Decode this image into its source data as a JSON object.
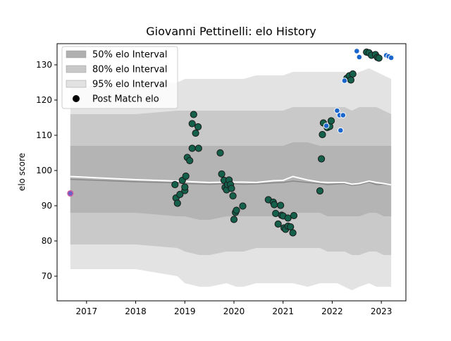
{
  "chart_data": {
    "type": "scatter",
    "title": "Giovanni Pettinelli: elo History",
    "xlabel": "",
    "ylabel": "elo score",
    "xlim": [
      2016.4,
      2023.5
    ],
    "ylim": [
      63,
      136
    ],
    "x_ticks": [
      2017,
      2018,
      2019,
      2020,
      2021,
      2022,
      2023
    ],
    "y_ticks": [
      70,
      80,
      90,
      100,
      110,
      120,
      130
    ],
    "grid": false,
    "legend_position": "upper-left",
    "legend": [
      {
        "label": "50% elo Interval",
        "kind": "band",
        "color": "#b0b0b0"
      },
      {
        "label": "80% elo Interval",
        "kind": "band",
        "color": "#c8c8c8"
      },
      {
        "label": "95% elo Interval",
        "kind": "band",
        "color": "#e2e2e2"
      },
      {
        "label": "Post Match elo",
        "kind": "marker",
        "color": "#000000"
      }
    ],
    "colors": {
      "band_50": "#b4b4b4",
      "band_80": "#c9c9c9",
      "band_95": "#e3e3e3",
      "mean_line": "#888888",
      "median_line": "#ffffff",
      "point_green": "#14604a",
      "point_blue": "#1a66cc",
      "point_initial": "#6a5fc7"
    },
    "bands": {
      "x": [
        2016.67,
        2018.0,
        2018.85,
        2019.0,
        2019.3,
        2019.5,
        2019.85,
        2020.05,
        2020.2,
        2020.45,
        2020.8,
        2021.0,
        2021.2,
        2021.5,
        2021.75,
        2021.9,
        2022.1,
        2022.25,
        2022.4,
        2022.55,
        2022.75,
        2022.9,
        2023.05,
        2023.2
      ],
      "band95_low": [
        72,
        72,
        70,
        68,
        67,
        67,
        68,
        67,
        67,
        68,
        68,
        68,
        68,
        67,
        68,
        68,
        68,
        67,
        66,
        67,
        68,
        67,
        67,
        67
      ],
      "band95_high": [
        124,
        124,
        125,
        126,
        126,
        126,
        126,
        126,
        126,
        127,
        127,
        127,
        128,
        128,
        128,
        128,
        128,
        128,
        127,
        128,
        129,
        128,
        127,
        126
      ],
      "band80_low": [
        79,
        79,
        78,
        77,
        76,
        76,
        77,
        77,
        77,
        78,
        78,
        78,
        78,
        78,
        78,
        77,
        77,
        77,
        76,
        76,
        77,
        77,
        76,
        76
      ],
      "band80_high": [
        116,
        116,
        117,
        117,
        117,
        117,
        117,
        117,
        117,
        117,
        117,
        117,
        118,
        118,
        118,
        118,
        118,
        118,
        117,
        118,
        118,
        118,
        117,
        116
      ],
      "band50_low": [
        88,
        88,
        87,
        87,
        86,
        86,
        87,
        87,
        87,
        87,
        87,
        87,
        88,
        88,
        88,
        87,
        87,
        87,
        87,
        87,
        88,
        88,
        87,
        87
      ],
      "band50_high": [
        107,
        107,
        107,
        107,
        107,
        107,
        107,
        107,
        107,
        107,
        107,
        107,
        108,
        108,
        107,
        107,
        107,
        107,
        107,
        107,
        107,
        107,
        107,
        107
      ],
      "mean": [
        97.5,
        96.8,
        96.5,
        96.3,
        96.2,
        96.1,
        96.3,
        96.2,
        96.1,
        96.2,
        96.5,
        96.6,
        97.0,
        96.6,
        96.3,
        96.0,
        96.2,
        96.3,
        95.8,
        96.0,
        96.7,
        96.0,
        96.1,
        95.8
      ],
      "median": [
        98.3,
        97.4,
        97.0,
        96.9,
        96.7,
        96.6,
        96.7,
        96.7,
        96.7,
        96.6,
        97.1,
        97.2,
        98.3,
        97.3,
        96.7,
        96.6,
        96.6,
        96.6,
        96.1,
        96.3,
        97.0,
        96.6,
        96.3,
        95.9
      ]
    },
    "series": [
      {
        "name": "Post Match elo",
        "kind": "initial",
        "points": [
          [
            2016.67,
            93.5
          ]
        ]
      },
      {
        "name": "Post Match elo",
        "kind": "green",
        "points": [
          [
            2018.8,
            96
          ],
          [
            2018.82,
            92.2
          ],
          [
            2018.85,
            90.7
          ],
          [
            2018.9,
            93.2
          ],
          [
            2018.95,
            97.2
          ],
          [
            2019.0,
            94.3
          ],
          [
            2019.0,
            95.3
          ],
          [
            2019.02,
            98.4
          ],
          [
            2019.05,
            103.7
          ],
          [
            2019.1,
            102.8
          ],
          [
            2019.15,
            106.3
          ],
          [
            2019.15,
            113.3
          ],
          [
            2019.18,
            115.9
          ],
          [
            2019.22,
            110.6
          ],
          [
            2019.27,
            112.4
          ],
          [
            2019.28,
            106.3
          ],
          [
            2019.72,
            105
          ],
          [
            2019.75,
            99
          ],
          [
            2019.8,
            97.2
          ],
          [
            2019.82,
            95.2
          ],
          [
            2019.85,
            94.5
          ],
          [
            2019.87,
            96
          ],
          [
            2019.9,
            97.3
          ],
          [
            2019.93,
            96
          ],
          [
            2019.95,
            94.9
          ],
          [
            2019.98,
            92.8
          ],
          [
            2020.0,
            86.1
          ],
          [
            2020.03,
            88.1
          ],
          [
            2020.05,
            88.7
          ],
          [
            2020.18,
            89.9
          ],
          [
            2020.7,
            91.7
          ],
          [
            2020.8,
            91
          ],
          [
            2020.82,
            90.3
          ],
          [
            2020.85,
            87.8
          ],
          [
            2020.9,
            84.8
          ],
          [
            2020.95,
            90.1
          ],
          [
            2020.97,
            87.3
          ],
          [
            2021.0,
            87.1
          ],
          [
            2021.02,
            83.7
          ],
          [
            2021.05,
            83.3
          ],
          [
            2021.1,
            84.2
          ],
          [
            2021.1,
            86.5
          ],
          [
            2021.15,
            84
          ],
          [
            2021.2,
            82.3
          ],
          [
            2021.22,
            87.2
          ],
          [
            2021.75,
            94.2
          ],
          [
            2021.78,
            103.3
          ],
          [
            2021.8,
            110.2
          ],
          [
            2021.82,
            113.5
          ],
          [
            2021.9,
            112.2
          ],
          [
            2021.95,
            112.5
          ],
          [
            2021.98,
            114.1
          ],
          [
            2022.3,
            126.2
          ],
          [
            2022.35,
            126.9
          ],
          [
            2022.38,
            125.7
          ],
          [
            2022.42,
            127.4
          ],
          [
            2022.7,
            133.6
          ],
          [
            2022.75,
            133.4
          ],
          [
            2022.8,
            132.7
          ],
          [
            2022.88,
            132.9
          ],
          [
            2022.92,
            132.1
          ],
          [
            2022.95,
            131.9
          ]
        ]
      },
      {
        "name": "Post Match elo",
        "kind": "blue",
        "points": [
          [
            2021.88,
            112.7
          ],
          [
            2022.1,
            117
          ],
          [
            2022.15,
            115.7
          ],
          [
            2022.17,
            111.4
          ],
          [
            2022.22,
            115.7
          ],
          [
            2022.25,
            125.5
          ],
          [
            2022.5,
            133.9
          ],
          [
            2022.55,
            132.2
          ],
          [
            2023.1,
            132.7
          ],
          [
            2023.15,
            132.4
          ],
          [
            2023.2,
            132
          ]
        ]
      }
    ]
  }
}
